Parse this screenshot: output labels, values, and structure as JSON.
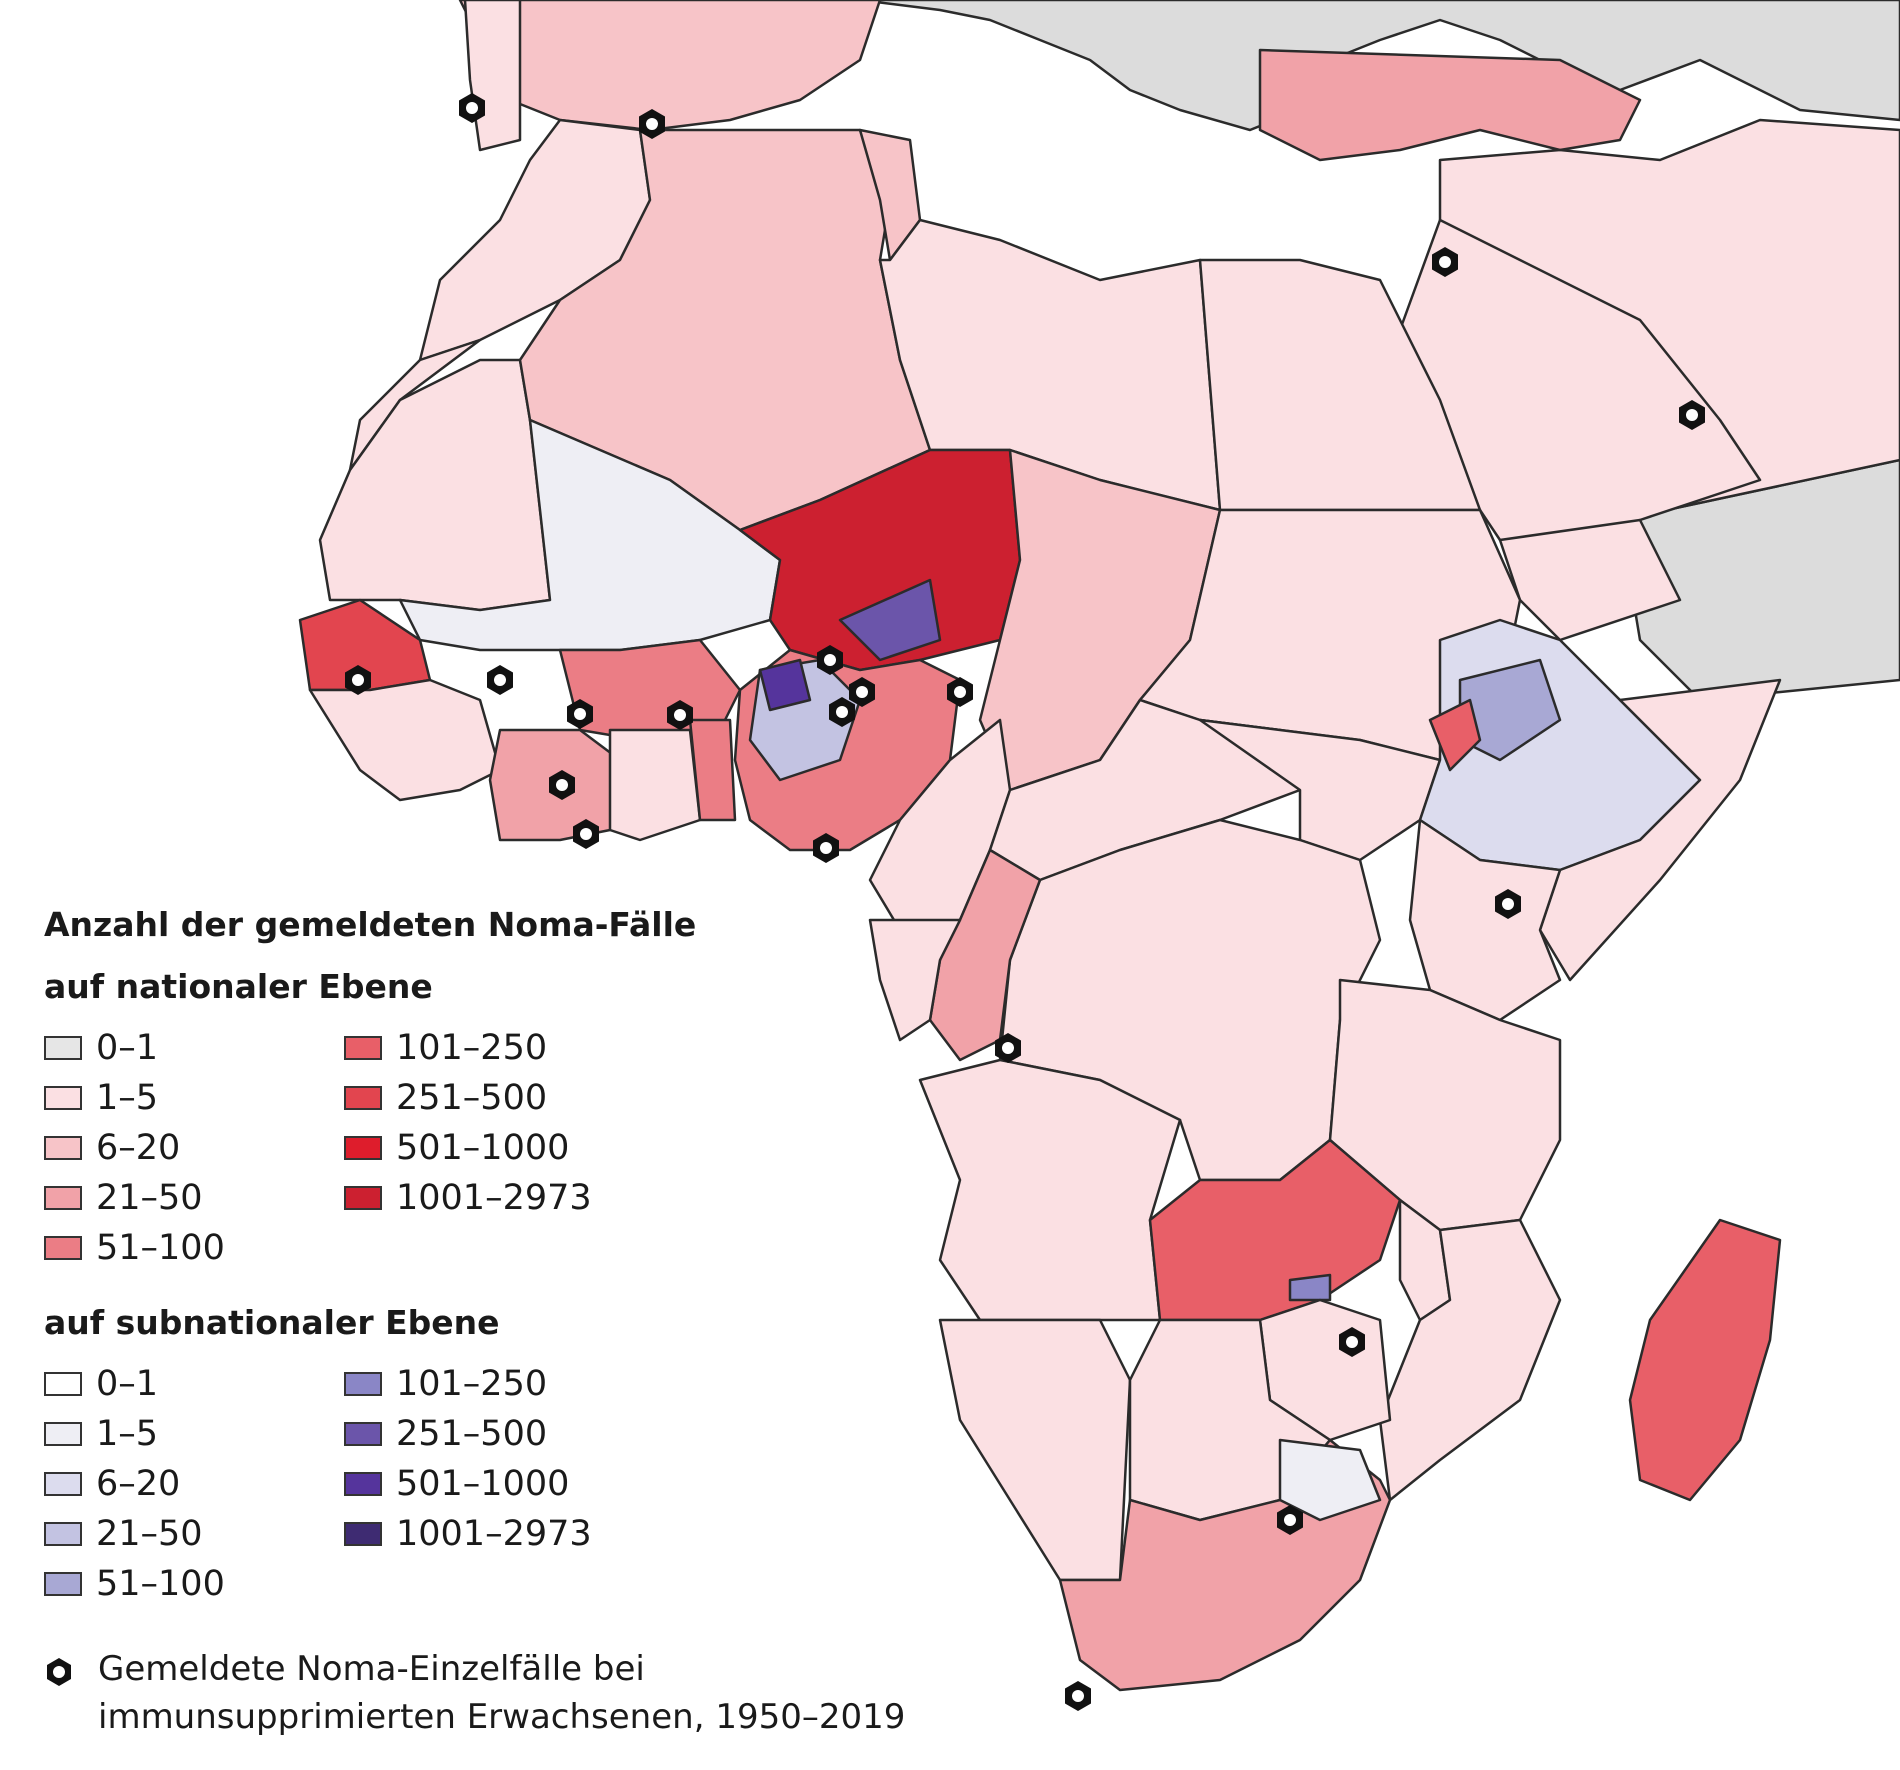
{
  "legend": {
    "title": "Anzahl der gemeldeten Noma-Fälle",
    "national_heading": "auf nationaler Ebene",
    "subnational_heading": "auf subnationaler Ebene",
    "national": [
      {
        "label": "0–1",
        "color": "#e6e6e6"
      },
      {
        "label": "1–5",
        "color": "#fbe0e3"
      },
      {
        "label": "6–20",
        "color": "#f7c4c8"
      },
      {
        "label": "21–50",
        "color": "#f1a2a8"
      },
      {
        "label": "51–100",
        "color": "#eb7d85"
      },
      {
        "label": "101–250",
        "color": "#e85f68"
      },
      {
        "label": "251–500",
        "color": "#e2454f"
      },
      {
        "label": "501–1000",
        "color": "#de1d2c"
      },
      {
        "label": "1001–2973",
        "color": "#cc2030"
      }
    ],
    "subnational": [
      {
        "label": "0–1",
        "color": "#ffffff"
      },
      {
        "label": "1–5",
        "color": "#eeeef4"
      },
      {
        "label": "6–20",
        "color": "#dcdcee"
      },
      {
        "label": "21–50",
        "color": "#c3c3e2"
      },
      {
        "label": "51–100",
        "color": "#a8a8d4"
      },
      {
        "label": "101–250",
        "color": "#8a86c6"
      },
      {
        "label": "251–500",
        "color": "#6b55aa"
      },
      {
        "label": "501–1000",
        "color": "#55349c"
      },
      {
        "label": "1001–2973",
        "color": "#3e2b72"
      }
    ],
    "case_note": [
      "Gemeldete Noma-Einzelfälle bei",
      "immunsupprimierten Erwachsenen, 1950–2019"
    ]
  },
  "colors": {
    "water": "#ffffff",
    "border": "#2b2b2b",
    "no_data": "#dcdcdc",
    "case_marker": "#111111"
  },
  "regions": [
    {
      "name": "morocco",
      "level": "national",
      "cls": 1
    },
    {
      "name": "western-sahara",
      "level": "national",
      "cls": 1
    },
    {
      "name": "mauritania",
      "level": "national",
      "cls": 1
    },
    {
      "name": "algeria",
      "level": "national",
      "cls": 2
    },
    {
      "name": "tunisia",
      "level": "national",
      "cls": 2
    },
    {
      "name": "libya",
      "level": "national",
      "cls": 1
    },
    {
      "name": "egypt",
      "level": "national",
      "cls": 1
    },
    {
      "name": "mali",
      "level": "subnational",
      "cls": 1
    },
    {
      "name": "niger",
      "level": "national",
      "cls": 8
    },
    {
      "name": "chad",
      "level": "national",
      "cls": 2
    },
    {
      "name": "sudan",
      "level": "national",
      "cls": 1
    },
    {
      "name": "senegal",
      "level": "national",
      "cls": 6
    },
    {
      "name": "guinea",
      "level": "national",
      "cls": 1
    },
    {
      "name": "burkina-faso",
      "level": "national",
      "cls": 4
    },
    {
      "name": "cote-divoire",
      "level": "national",
      "cls": 3
    },
    {
      "name": "ghana",
      "level": "national",
      "cls": 1
    },
    {
      "name": "benin",
      "level": "national",
      "cls": 4
    },
    {
      "name": "nigeria",
      "level": "national",
      "cls": 4
    },
    {
      "name": "cameroon",
      "level": "national",
      "cls": 1
    },
    {
      "name": "car",
      "level": "national",
      "cls": 1
    },
    {
      "name": "south-sudan",
      "level": "national",
      "cls": 1
    },
    {
      "name": "ethiopia",
      "level": "subnational",
      "cls": 2
    },
    {
      "name": "somalia",
      "level": "national",
      "cls": 1
    },
    {
      "name": "kenya",
      "level": "national",
      "cls": 1
    },
    {
      "name": "drc",
      "level": "national",
      "cls": 1
    },
    {
      "name": "congo",
      "level": "national",
      "cls": 3
    },
    {
      "name": "gabon",
      "level": "national",
      "cls": 1
    },
    {
      "name": "tanzania",
      "level": "national",
      "cls": 1
    },
    {
      "name": "angola",
      "level": "national",
      "cls": 1
    },
    {
      "name": "zambia",
      "level": "national",
      "cls": 5
    },
    {
      "name": "malawi",
      "level": "national",
      "cls": 1
    },
    {
      "name": "mozambique",
      "level": "national",
      "cls": 1
    },
    {
      "name": "zimbabwe",
      "level": "national",
      "cls": 1
    },
    {
      "name": "namibia",
      "level": "national",
      "cls": 1
    },
    {
      "name": "botswana",
      "level": "national",
      "cls": 1
    },
    {
      "name": "south-africa",
      "level": "national",
      "cls": 3
    },
    {
      "name": "madagascar",
      "level": "national",
      "cls": 5
    },
    {
      "name": "saudi-arabia",
      "level": "national",
      "cls": 1
    },
    {
      "name": "turkey",
      "level": "national",
      "cls": 3
    }
  ]
}
